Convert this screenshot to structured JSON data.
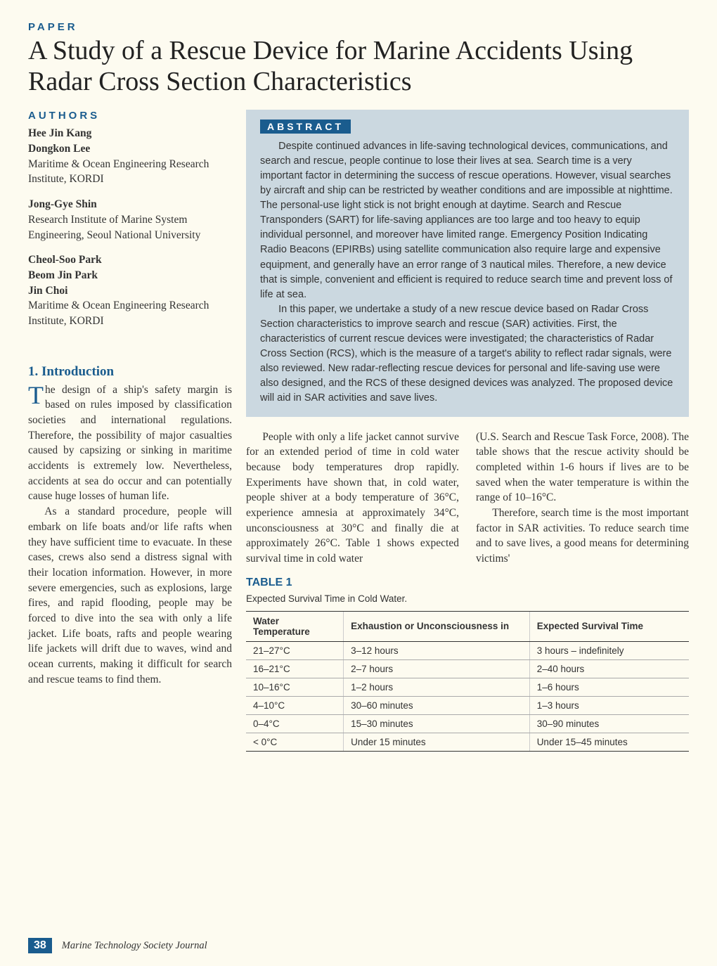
{
  "labels": {
    "paper": "PAPER",
    "authors": "AUTHORS",
    "abstract": "ABSTRACT",
    "table": "TABLE 1"
  },
  "title": "A Study of a Rescue Device for Marine Accidents Using Radar Cross Section Characteristics",
  "authors": [
    {
      "names": [
        "Hee Jin Kang",
        "Dongkon Lee"
      ],
      "affiliation": "Maritime & Ocean Engineering Research Institute, KORDI"
    },
    {
      "names": [
        "Jong-Gye Shin"
      ],
      "affiliation": "Research Institute of Marine System Engineering, Seoul National University"
    },
    {
      "names": [
        "Cheol-Soo Park",
        "Beom Jin Park",
        "Jin Choi"
      ],
      "affiliation": "Maritime & Ocean Engineering Research Institute, KORDI"
    }
  ],
  "section1": {
    "heading": "1. Introduction",
    "dropcap": "T",
    "para1_rest": "he design of a ship's safety margin is based on rules imposed by classification societies and international regulations. Therefore, the possibility of major casualties caused by capsizing or sinking in maritime accidents is extremely low. Nevertheless, accidents at sea do occur and can potentially cause huge losses of human life.",
    "para2": "As a standard procedure, people will embark on life boats and/or life rafts when they have sufficient time to evacuate. In these cases, crews also send a distress signal with their location information. However, in more severe emergencies, such as explosions, large fires, and rapid flooding, people may be forced to dive into the sea with only a life jacket. Life boats, rafts and people wearing life jackets will drift due to waves, wind and ocean currents, making it difficult for search and rescue teams to find them."
  },
  "abstract": {
    "para1": "Despite continued advances in life-saving technological devices, communications, and search and rescue, people continue to lose their lives at sea. Search time is a very important factor in determining the success of rescue operations. However, visual searches by aircraft and ship can be restricted by weather conditions and are impossible at nighttime. The personal-use light stick is not bright enough at daytime. Search and Rescue Transponders (SART) for life-saving appliances are too large and too heavy to equip individual personnel, and moreover have limited range. Emergency Position Indicating Radio Beacons (EPIRBs) using satellite communication also require large and expensive equipment, and generally have an error range of 3 nautical miles. Therefore, a new device that is simple, convenient and efficient is required to reduce search time and prevent loss of life at sea.",
    "para2": "In this paper, we undertake a study of a new rescue device based on Radar Cross Section characteristics to improve search and rescue (SAR) activities. First, the characteristics of current rescue devices were investigated; the characteristics of Radar Cross Section (RCS), which is the measure of a target's ability to reflect radar signals, were also reviewed. New radar-reflecting rescue devices for personal and life-saving use were also designed, and the RCS of these designed devices was analyzed. The proposed device will aid in SAR activities and save lives."
  },
  "body_cols": {
    "left": "People with only a life jacket cannot survive for an extended period of time in cold water because body temperatures drop rapidly. Experiments have shown that, in cold water, people shiver at a body temperature of 36°C, experience amnesia at approximately 34°C, unconsciousness at 30°C and finally die at approximately 26°C. Table 1 shows expected survival time in cold water",
    "right_p1": "(U.S. Search and Rescue Task Force, 2008). The table shows that the rescue activity should be completed within 1-6 hours if lives are to be saved when the water temperature is within the range of 10–16°C.",
    "right_p2": "Therefore, search time is the most important factor in SAR activities. To reduce search time and to save lives, a good means for determining victims'"
  },
  "table1": {
    "caption": "Expected Survival Time in Cold Water.",
    "columns": [
      "Water Temperature",
      "Exhaustion or Unconsciousness in",
      "Expected Survival Time"
    ],
    "rows": [
      [
        "21–27°C",
        "3–12 hours",
        "3 hours – indefinitely"
      ],
      [
        "16–21°C",
        "2–7 hours",
        "2–40 hours"
      ],
      [
        "10–16°C",
        "1–2 hours",
        "1–6 hours"
      ],
      [
        "4–10°C",
        "30–60 minutes",
        "1–3 hours"
      ],
      [
        "0–4°C",
        "15–30 minutes",
        "30–90 minutes"
      ],
      [
        "< 0°C",
        "Under 15 minutes",
        "Under 15–45 minutes"
      ]
    ]
  },
  "footer": {
    "page": "38",
    "journal": "Marine Technology Society Journal"
  },
  "style": {
    "accent_color": "#1a5c8e",
    "bg_color": "#fdfbf0",
    "abstract_bg": "#cbd8e0",
    "body_fontsize": 15.5,
    "title_fontsize": 38
  }
}
